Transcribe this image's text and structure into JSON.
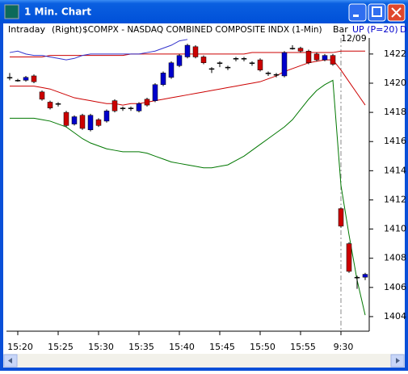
{
  "window": {
    "title": "1 Min. Chart"
  },
  "header": {
    "mode": "Intraday",
    "side": "(Right)",
    "symbol": "$COMPX - NASDAQ COMBINED COMPOSITE INDX (1-Min)",
    "style": "Bar",
    "study": "UP (P=20)",
    "extra": "D",
    "date": "12/09"
  },
  "chart_data": {
    "type": "candlestick",
    "categories": [
      null,
      "15:20",
      null,
      null,
      null,
      null,
      "15:25",
      null,
      null,
      null,
      null,
      "15:30",
      null,
      null,
      null,
      null,
      "15:35",
      null,
      null,
      null,
      null,
      "15:40",
      null,
      null,
      null,
      null,
      "15:45",
      null,
      null,
      null,
      null,
      "15:50",
      null,
      null,
      null,
      null,
      "15:55",
      null,
      null,
      null,
      null,
      "9:30",
      null,
      null,
      null
    ],
    "open": [
      1420.4,
      1420.2,
      1420.2,
      1420.5,
      1419.4,
      1418.7,
      1418.6,
      1418.0,
      1417.2,
      1417.8,
      1416.8,
      1417.5,
      1417.4,
      1418.8,
      1418.3,
      1418.3,
      1418.1,
      1418.9,
      1418.8,
      1419.9,
      1420.4,
      1421.2,
      1421.8,
      1422.5,
      1421.8,
      1421.0,
      1421.4,
      1421.1,
      1421.7,
      1421.7,
      1421.4,
      1421.6,
      1420.7,
      1420.6,
      1420.5,
      1422.4,
      1422.4,
      1422.2,
      1422.0,
      1421.6,
      1421.9,
      1411.4,
      1409.0,
      1406.7,
      1406.7
    ],
    "high": [
      1420.7,
      1420.3,
      1420.5,
      1420.6,
      1419.5,
      1418.8,
      1418.7,
      1418.1,
      1417.8,
      1417.9,
      1417.9,
      1417.6,
      1418.2,
      1418.9,
      1418.4,
      1418.4,
      1418.7,
      1419.0,
      1420.0,
      1420.8,
      1421.5,
      1422.0,
      1422.7,
      1422.6,
      1421.9,
      1421.1,
      1421.5,
      1421.2,
      1421.8,
      1421.8,
      1421.5,
      1421.7,
      1420.8,
      1420.7,
      1422.2,
      1422.6,
      1422.5,
      1422.3,
      1422.1,
      1422.0,
      1422.0,
      1411.5,
      1409.1,
      1406.8,
      1407.0
    ],
    "low": [
      1420.2,
      1420.1,
      1420.1,
      1420.0,
      1418.8,
      1418.2,
      1418.4,
      1417.0,
      1417.1,
      1416.8,
      1416.7,
      1417.0,
      1417.3,
      1418.0,
      1418.1,
      1418.1,
      1418.0,
      1418.4,
      1418.7,
      1419.8,
      1420.3,
      1421.1,
      1421.7,
      1421.7,
      1421.3,
      1420.7,
      1421.1,
      1420.9,
      1421.5,
      1421.5,
      1421.2,
      1420.8,
      1420.5,
      1420.4,
      1420.4,
      1422.3,
      1422.1,
      1421.3,
      1421.5,
      1421.5,
      1421.2,
      1410.1,
      1407.0,
      1405.9,
      1406.5
    ],
    "close": [
      1420.4,
      1420.2,
      1420.4,
      1420.1,
      1418.9,
      1418.3,
      1418.6,
      1417.1,
      1417.7,
      1416.9,
      1417.8,
      1417.1,
      1418.1,
      1418.1,
      1418.3,
      1418.3,
      1418.6,
      1418.5,
      1419.9,
      1420.7,
      1421.4,
      1421.9,
      1422.6,
      1421.8,
      1421.4,
      1421.0,
      1421.4,
      1421.1,
      1421.7,
      1421.7,
      1421.4,
      1420.9,
      1420.7,
      1420.6,
      1422.1,
      1422.4,
      1422.2,
      1421.4,
      1421.6,
      1421.9,
      1421.3,
      1410.2,
      1407.1,
      1406.7,
      1406.9
    ],
    "up_color": "#0000cc",
    "down_color": "#cc0000",
    "lines": [
      {
        "color": "#cc0000",
        "values": [
          1421.8,
          1421.8,
          1421.8,
          1421.8,
          1421.8,
          1421.9,
          1421.9,
          1421.9,
          1421.9,
          1421.9,
          1421.9,
          1421.9,
          1421.9,
          1421.9,
          1421.9,
          1422.0,
          1422.0,
          1422.0,
          1422.0,
          1422.0,
          1422.0,
          1422.0,
          1422.0,
          1422.0,
          1422.0,
          1422.0,
          1422.0,
          1422.0,
          1422.0,
          1422.0,
          1422.1,
          1422.1,
          1422.1,
          1422.1,
          1422.1,
          1422.1,
          1422.1,
          1422.1,
          1422.1,
          1422.1,
          1422.1,
          1422.2,
          1422.2,
          1422.2,
          1422.2
        ]
      },
      {
        "color": "#3333cc",
        "values": [
          1422.1,
          1422.2,
          1422.0,
          1421.9,
          1421.9,
          1421.8,
          1421.7,
          1421.6,
          1421.7,
          1421.9,
          1422.0,
          1422.0,
          1422.0,
          1422.0,
          1422.0,
          1422.0,
          1422.0,
          1422.1,
          1422.2,
          1422.4,
          1422.6,
          1422.9,
          1423.0,
          null,
          null,
          null,
          null,
          null,
          null,
          null,
          null,
          null,
          null,
          null,
          null,
          null,
          null,
          null,
          null,
          null,
          null,
          null,
          null,
          null,
          null
        ]
      },
      {
        "color": "#cc0000",
        "values": [
          1419.8,
          1419.8,
          1419.8,
          1419.8,
          1419.7,
          1419.6,
          1419.4,
          1419.2,
          1419.0,
          1418.9,
          1418.8,
          1418.7,
          1418.6,
          1418.6,
          1418.5,
          1418.6,
          1418.6,
          1418.7,
          1418.8,
          1418.9,
          1419.0,
          1419.1,
          1419.2,
          1419.3,
          1419.4,
          1419.5,
          1419.6,
          1419.7,
          1419.8,
          1419.9,
          1420.0,
          1420.1,
          1420.3,
          1420.5,
          1420.8,
          1421.0,
          1421.2,
          1421.4,
          1421.5,
          1421.6,
          1421.6,
          1420.9,
          1420.1,
          1419.3,
          1418.5
        ]
      },
      {
        "color": "#007700",
        "values": [
          1417.6,
          1417.6,
          1417.6,
          1417.6,
          1417.5,
          1417.4,
          1417.2,
          1417.0,
          1416.6,
          1416.2,
          1415.9,
          1415.7,
          1415.5,
          1415.4,
          1415.3,
          1415.3,
          1415.3,
          1415.2,
          1415.0,
          1414.8,
          1414.6,
          1414.5,
          1414.4,
          1414.3,
          1414.2,
          1414.2,
          1414.3,
          1414.4,
          1414.7,
          1415.0,
          1415.4,
          1415.8,
          1416.2,
          1416.6,
          1417.0,
          1417.5,
          1418.2,
          1418.9,
          1419.5,
          1419.9,
          1420.2,
          1413.0,
          1409.6,
          1406.5,
          1404.1
        ]
      }
    ],
    "ylim": [
      1403,
      1423.1
    ],
    "yticks": [
      1404,
      1406,
      1408,
      1410,
      1412,
      1414,
      1416,
      1418,
      1420,
      1422
    ]
  }
}
